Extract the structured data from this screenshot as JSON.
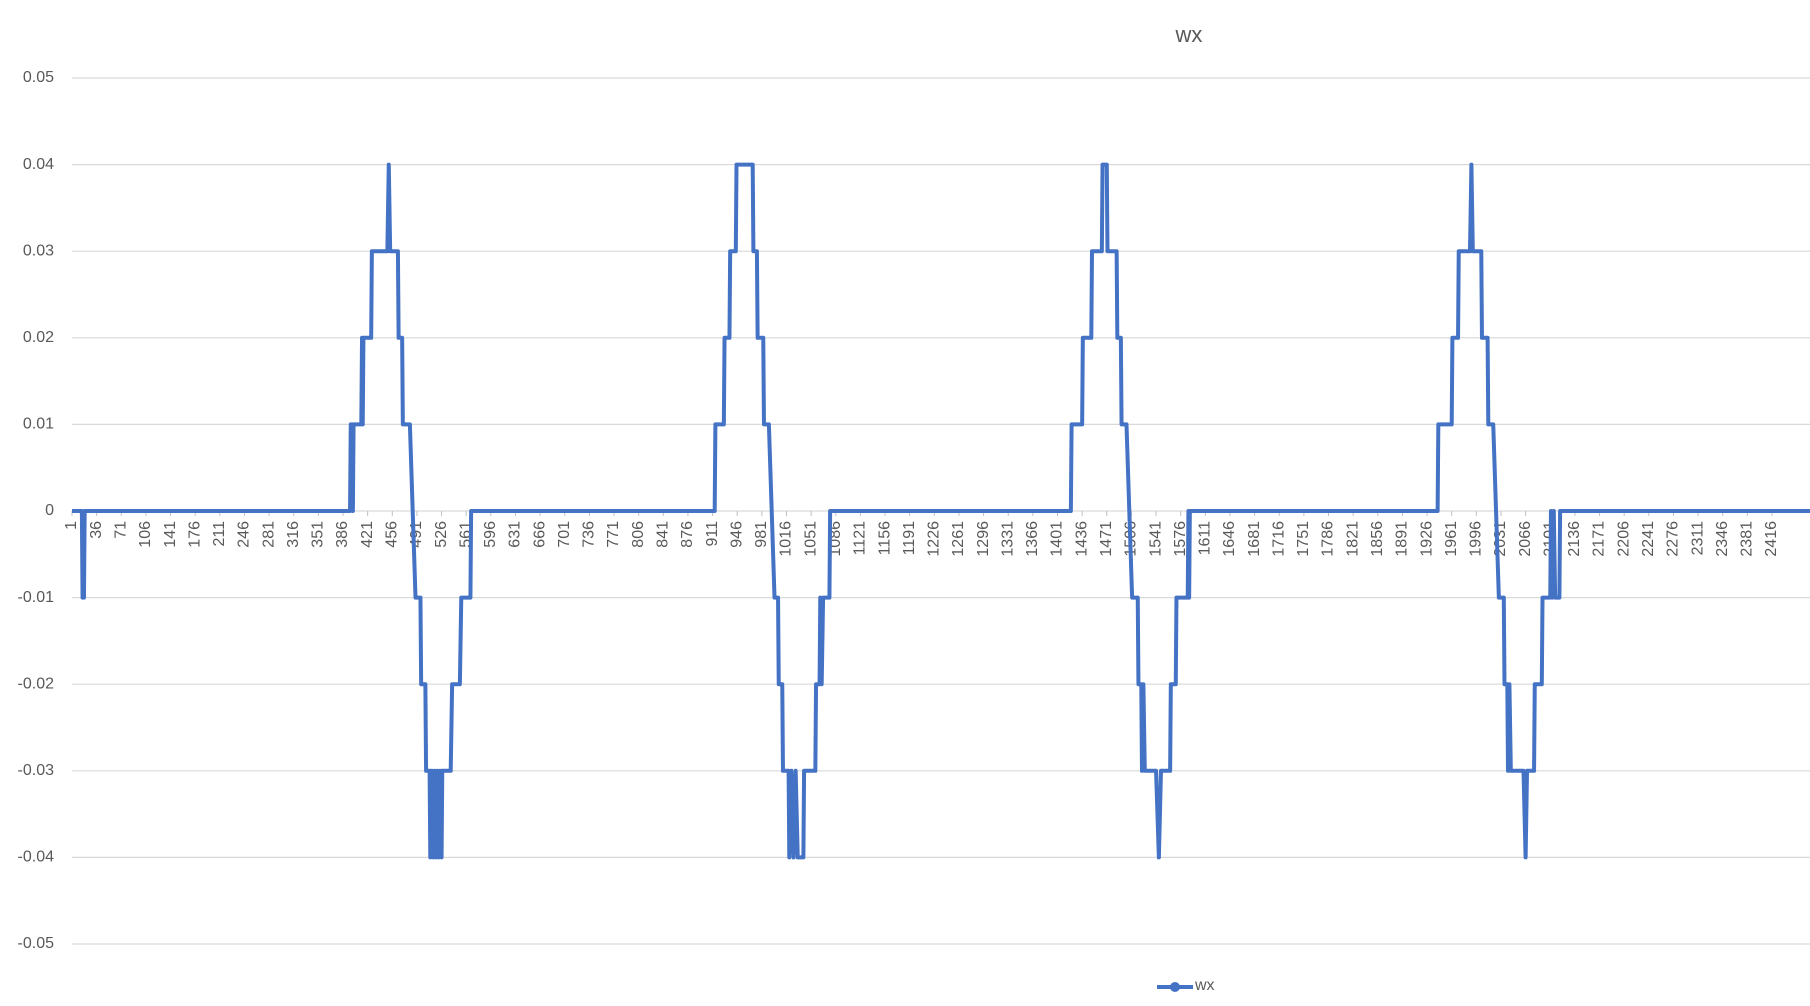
{
  "chart_data": {
    "type": "line",
    "title": "wx",
    "x": [
      1,
      15,
      16,
      18,
      19,
      396,
      397,
      399,
      400,
      401,
      412,
      413,
      414,
      415,
      426,
      427,
      449,
      451,
      453,
      464,
      465,
      470,
      471,
      481,
      485,
      489,
      496,
      497,
      503,
      504,
      509,
      510,
      512,
      514,
      516,
      518,
      520,
      522,
      524,
      526,
      527,
      539,
      541,
      552,
      554,
      567,
      568,
      914,
      915,
      927,
      928,
      935,
      936,
      944,
      945,
      968,
      969,
      974,
      975,
      983,
      984,
      991,
      995,
      999,
      1004,
      1005,
      1010,
      1011,
      1019,
      1020,
      1023,
      1026,
      1029,
      1032,
      1040,
      1041,
      1057,
      1058,
      1063,
      1064,
      1066,
      1068,
      1077,
      1078,
      1420,
      1421,
      1436,
      1437,
      1449,
      1450,
      1464,
      1465,
      1471,
      1472,
      1485,
      1486,
      1491,
      1492,
      1499,
      1503,
      1507,
      1515,
      1516,
      1520,
      1521,
      1523,
      1525,
      1541,
      1545,
      1548,
      1561,
      1562,
      1569,
      1570,
      1586,
      1587,
      1588,
      1589,
      1941,
      1942,
      1961,
      1962,
      1970,
      1971,
      1987,
      1989,
      1991,
      2003,
      2004,
      2012,
      2013,
      2020,
      2024,
      2028,
      2035,
      2036,
      2040,
      2041,
      2043,
      2045,
      2063,
      2066,
      2068,
      2078,
      2079,
      2089,
      2090,
      2101,
      2102,
      2104,
      2106,
      2108,
      2114,
      2115,
      2470
    ],
    "series": [
      {
        "name": "wx",
        "color": "#4472c4",
        "values": [
          0,
          0,
          -0.01,
          -0.01,
          0,
          0,
          0.01,
          0.01,
          0,
          0.01,
          0.01,
          0.02,
          0.01,
          0.02,
          0.02,
          0.03,
          0.03,
          0.04,
          0.03,
          0.03,
          0.02,
          0.02,
          0.01,
          0.01,
          0,
          -0.01,
          -0.01,
          -0.02,
          -0.02,
          -0.03,
          -0.03,
          -0.04,
          -0.03,
          -0.04,
          -0.03,
          -0.04,
          -0.03,
          -0.04,
          -0.03,
          -0.04,
          -0.03,
          -0.03,
          -0.02,
          -0.02,
          -0.01,
          -0.01,
          0,
          0,
          0.01,
          0.01,
          0.02,
          0.02,
          0.03,
          0.03,
          0.04,
          0.04,
          0.03,
          0.03,
          0.02,
          0.02,
          0.01,
          0.01,
          0,
          -0.01,
          -0.01,
          -0.02,
          -0.02,
          -0.03,
          -0.03,
          -0.04,
          -0.03,
          -0.04,
          -0.03,
          -0.04,
          -0.04,
          -0.03,
          -0.03,
          -0.02,
          -0.02,
          -0.01,
          -0.02,
          -0.01,
          -0.01,
          0,
          0,
          0.01,
          0.01,
          0.02,
          0.02,
          0.03,
          0.03,
          0.04,
          0.04,
          0.03,
          0.03,
          0.02,
          0.02,
          0.01,
          0.01,
          0,
          -0.01,
          -0.01,
          -0.02,
          -0.02,
          -0.03,
          -0.02,
          -0.03,
          -0.03,
          -0.04,
          -0.03,
          -0.03,
          -0.02,
          -0.02,
          -0.01,
          -0.01,
          0,
          -0.01,
          0,
          0,
          0.01,
          0.01,
          0.02,
          0.02,
          0.03,
          0.03,
          0.04,
          0.03,
          0.03,
          0.02,
          0.02,
          0.01,
          0.01,
          0,
          -0.01,
          -0.01,
          -0.02,
          -0.02,
          -0.03,
          -0.02,
          -0.03,
          -0.03,
          -0.04,
          -0.03,
          -0.03,
          -0.02,
          -0.02,
          -0.01,
          -0.01,
          0,
          -0.01,
          0,
          -0.01,
          -0.01,
          0,
          0
        ]
      }
    ],
    "xlim": [
      1,
      2470
    ],
    "xticks": [
      1,
      36,
      71,
      106,
      141,
      176,
      211,
      246,
      281,
      316,
      351,
      386,
      421,
      456,
      491,
      526,
      561,
      596,
      631,
      666,
      701,
      736,
      771,
      806,
      841,
      876,
      911,
      946,
      981,
      1016,
      1051,
      1086,
      1121,
      1156,
      1191,
      1226,
      1261,
      1296,
      1331,
      1366,
      1401,
      1436,
      1471,
      1506,
      1541,
      1576,
      1611,
      1646,
      1681,
      1716,
      1751,
      1786,
      1821,
      1856,
      1891,
      1926,
      1961,
      1996,
      2031,
      2066,
      2101,
      2136,
      2171,
      2206,
      2241,
      2276,
      2311,
      2346,
      2381,
      2416
    ],
    "ylim": [
      -0.05,
      0.05
    ],
    "yticks": [
      -0.05,
      -0.04,
      -0.03,
      -0.02,
      -0.01,
      0,
      0.01,
      0.02,
      0.03,
      0.04,
      0.05
    ],
    "grid": true,
    "legend": "bottom"
  }
}
